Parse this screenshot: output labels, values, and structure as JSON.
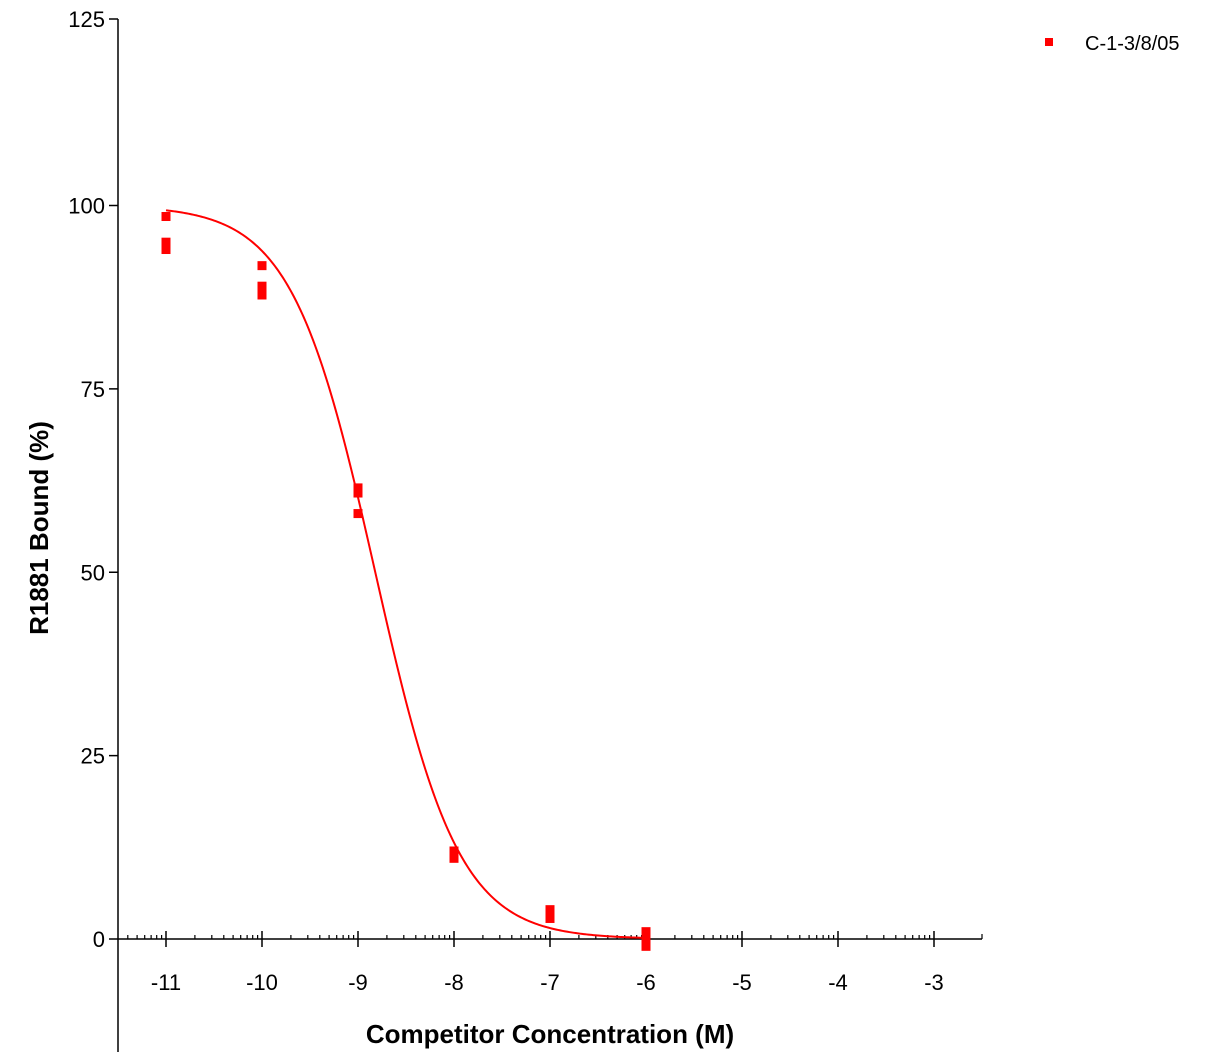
{
  "chart_data": {
    "type": "scatter",
    "title": "",
    "xlabel": "Competitor Concentration (M)",
    "ylabel": "R1881 Bound (%)",
    "xlim": [
      -11.5,
      -2.5
    ],
    "ylim": [
      -15,
      125
    ],
    "x_ticks": [
      -11,
      -10,
      -9,
      -8,
      -7,
      -6,
      -5,
      -4,
      -3
    ],
    "x_tick_labels": [
      "-11",
      "-10",
      "-9",
      "-8",
      "-7",
      "-6",
      "-5",
      "-4",
      "-3"
    ],
    "y_ticks": [
      0,
      25,
      50,
      75,
      100,
      125
    ],
    "y_tick_labels": [
      "0",
      "25",
      "50",
      "75",
      "100",
      "125"
    ],
    "x_scale": "log10 concentration",
    "grid": false,
    "legend_position": "top-right",
    "series": [
      {
        "name": "C-1-3/8/05",
        "color": "#ff0000",
        "marker": "square",
        "points": [
          [
            -11,
            98.5
          ],
          [
            -11,
            95
          ],
          [
            -11,
            94
          ],
          [
            -10,
            91.8
          ],
          [
            -10,
            89
          ],
          [
            -10,
            87.8
          ],
          [
            -9,
            61.5
          ],
          [
            -9,
            60.8
          ],
          [
            -9,
            58
          ],
          [
            -8,
            12
          ],
          [
            -8,
            11.5
          ],
          [
            -8,
            11
          ],
          [
            -7,
            4
          ],
          [
            -7,
            3.3
          ],
          [
            -7,
            2.8
          ],
          [
            -6,
            1
          ],
          [
            -6,
            0.2
          ],
          [
            -6,
            -1
          ]
        ]
      }
    ],
    "fit_curve": {
      "model": "sigmoidal dose-response",
      "color": "#ff0000",
      "top": 100,
      "bottom": 0,
      "logEC50": -8.82,
      "hill_slope": -1,
      "x_range": [
        -11,
        -6
      ]
    }
  }
}
